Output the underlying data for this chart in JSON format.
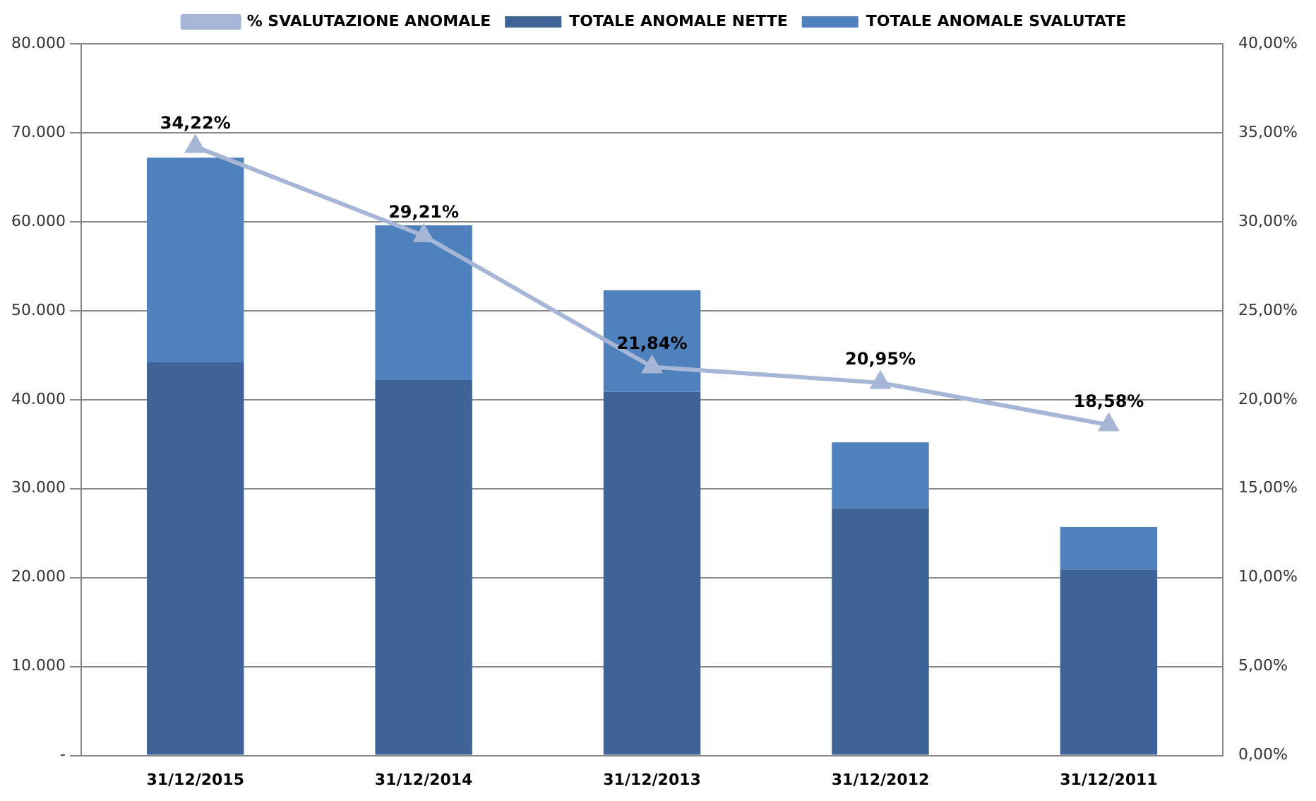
{
  "chart_data": {
    "type": "bar",
    "stacked": true,
    "categories": [
      "31/12/2015",
      "31/12/2014",
      "31/12/2013",
      "31/12/2012",
      "31/12/2011"
    ],
    "series": [
      {
        "name": "TOTALE ANOMALE NETTE",
        "color": "#3f6396",
        "values": [
          44200,
          42200,
          40900,
          27800,
          20900
        ]
      },
      {
        "name": "TOTALE ANOMALE SVALUTATE",
        "color": "#4f81bd",
        "values": [
          23000,
          17400,
          11400,
          7400,
          4800
        ]
      },
      {
        "name": "% SVALUTAZIONE ANOMALE",
        "type": "line",
        "axis": "y2",
        "color": "#a5b6d6",
        "marker": "triangle",
        "values": [
          34.22,
          29.21,
          21.84,
          20.95,
          18.58
        ],
        "value_labels": [
          "34,22%",
          "29,21%",
          "21,84%",
          "20,95%",
          "18,58%"
        ]
      }
    ],
    "ylim": [
      0,
      80000
    ],
    "yticks": [
      {
        "value": 0,
        "label": "-"
      },
      {
        "value": 10000,
        "label": "10.000"
      },
      {
        "value": 20000,
        "label": "20.000"
      },
      {
        "value": 30000,
        "label": "30.000"
      },
      {
        "value": 40000,
        "label": "40.000"
      },
      {
        "value": 50000,
        "label": "50.000"
      },
      {
        "value": 60000,
        "label": "60.000"
      },
      {
        "value": 70000,
        "label": "70.000"
      },
      {
        "value": 80000,
        "label": "80.000"
      }
    ],
    "y2lim": [
      0,
      40
    ],
    "y2ticks": [
      {
        "value": 0,
        "label": "0,00%"
      },
      {
        "value": 5,
        "label": "5,00%"
      },
      {
        "value": 10,
        "label": "10,00%"
      },
      {
        "value": 15,
        "label": "15,00%"
      },
      {
        "value": 20,
        "label": "20,00%"
      },
      {
        "value": 25,
        "label": "25,00%"
      },
      {
        "value": 30,
        "label": "30,00%"
      },
      {
        "value": 35,
        "label": "35,00%"
      },
      {
        "value": 40,
        "label": "40,00%"
      }
    ],
    "grid": "y",
    "legend": "top"
  }
}
